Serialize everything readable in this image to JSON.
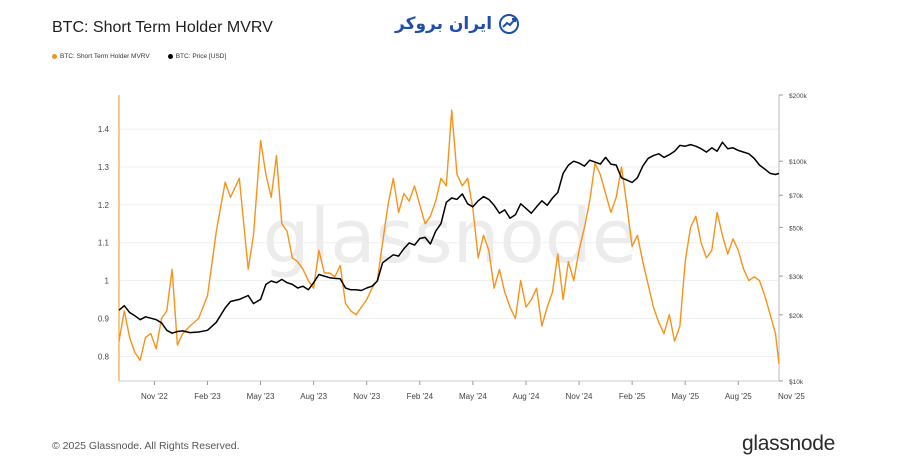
{
  "header": {
    "title": "BTC: Short Term Holder MVRV",
    "brand_text": "ایران بروکر"
  },
  "legend": [
    {
      "label": "BTC: Short Term Holder MVRV",
      "color": "#f7931a"
    },
    {
      "label": "BTC: Price [USD]",
      "color": "#000000"
    }
  ],
  "footer": {
    "copyright": "© 2025 Glassnode. All Rights Reserved.",
    "wordmark": "glassnode",
    "watermark": "glassnode"
  },
  "chart_data": {
    "type": "line",
    "title": "BTC: Short Term Holder MVRV",
    "x_tick_labels": [
      "Nov '22",
      "Feb '23",
      "May '23",
      "Aug '23",
      "Nov '23",
      "Feb '24",
      "May '24",
      "Aug '24",
      "Nov '24",
      "Feb '25",
      "May '25",
      "Aug '25",
      "Nov '25"
    ],
    "x_range": [
      0,
      37.3
    ],
    "y_left": {
      "ticks": [
        0.8,
        0.9,
        1,
        1.1,
        1.2,
        1.3,
        1.4
      ],
      "tick_labels": [
        "0.8",
        "0.9",
        "1",
        "1.1",
        "1.2",
        "1.3",
        "1.4"
      ],
      "range": [
        0.735,
        1.49
      ]
    },
    "y_right": {
      "scale": "log",
      "ticks": [
        10000,
        20000,
        30000,
        50000,
        70000,
        100000,
        200000
      ],
      "tick_labels": [
        "$10k",
        "$20k",
        "$30k",
        "$50k",
        "$70k",
        "$100k",
        "$200k"
      ],
      "range": [
        10000,
        200000
      ]
    },
    "grid": true,
    "legend_position": "top-left",
    "series": [
      {
        "name": "BTC: Short Term Holder MVRV",
        "axis": "left",
        "color": "#f7931a",
        "x": [
          0,
          0.3,
          0.6,
          0.9,
          1.2,
          1.5,
          1.8,
          2.1,
          2.4,
          2.7,
          3.0,
          3.3,
          3.6,
          4.0,
          4.5,
          5.0,
          5.5,
          6.0,
          6.3,
          6.8,
          7.3,
          7.6,
          8.0,
          8.3,
          8.6,
          8.9,
          9.2,
          9.5,
          9.8,
          10.1,
          10.4,
          10.7,
          11.0,
          11.3,
          11.6,
          11.9,
          12.2,
          12.5,
          12.8,
          13.1,
          13.4,
          13.7,
          14.0,
          14.3,
          14.6,
          14.9,
          15.2,
          15.5,
          15.8,
          16.1,
          16.4,
          16.7,
          17.0,
          17.3,
          17.6,
          17.9,
          18.2,
          18.5,
          18.8,
          19.1,
          19.4,
          19.7,
          20.0,
          20.3,
          20.6,
          20.9,
          21.2,
          21.5,
          21.8,
          22.1,
          22.4,
          22.7,
          23.0,
          23.3,
          23.6,
          23.9,
          24.2,
          24.5,
          24.8,
          25.1,
          25.4,
          25.7,
          26.0,
          26.3,
          26.6,
          26.9,
          27.2,
          27.5,
          27.8,
          28.1,
          28.4,
          28.7,
          29.0,
          29.3,
          29.6,
          29.9,
          30.2,
          30.5,
          30.8,
          31.1,
          31.4,
          31.7,
          32.0,
          32.3,
          32.6,
          32.9,
          33.2,
          33.5,
          33.8,
          34.1,
          34.4,
          34.7,
          35.0,
          35.3,
          35.6,
          35.9,
          36.2,
          36.5,
          36.8,
          37.1,
          37.3
        ],
        "y": [
          0.84,
          0.92,
          0.85,
          0.81,
          0.79,
          0.85,
          0.86,
          0.82,
          0.9,
          0.92,
          1.03,
          0.83,
          0.86,
          0.88,
          0.9,
          0.96,
          1.13,
          1.26,
          1.22,
          1.27,
          1.03,
          1.12,
          1.37,
          1.28,
          1.22,
          1.33,
          1.15,
          1.13,
          1.06,
          1.05,
          1.03,
          1.0,
          0.98,
          1.08,
          1.02,
          1.02,
          1.01,
          1.04,
          0.94,
          0.92,
          0.91,
          0.93,
          0.95,
          0.98,
          1.0,
          1.1,
          1.2,
          1.27,
          1.18,
          1.23,
          1.21,
          1.25,
          1.2,
          1.15,
          1.17,
          1.21,
          1.27,
          1.25,
          1.45,
          1.28,
          1.25,
          1.27,
          1.19,
          1.06,
          1.12,
          1.08,
          0.98,
          1.03,
          0.97,
          0.93,
          0.9,
          1.0,
          0.93,
          0.95,
          0.98,
          0.88,
          0.93,
          0.97,
          1.07,
          0.95,
          1.05,
          1.0,
          1.08,
          1.14,
          1.21,
          1.31,
          1.28,
          1.23,
          1.18,
          1.22,
          1.3,
          1.2,
          1.09,
          1.12,
          1.05,
          0.99,
          0.93,
          0.89,
          0.86,
          0.91,
          0.84,
          0.88,
          1.05,
          1.14,
          1.17,
          1.1,
          1.06,
          1.08,
          1.18,
          1.12,
          1.07,
          1.11,
          1.08,
          1.03,
          1.0,
          1.01,
          1.0,
          0.96,
          0.91,
          0.86,
          0.78
        ]
      },
      {
        "name": "BTC: Price [USD]",
        "axis": "right",
        "color": "#000000",
        "x": [
          0,
          0.3,
          0.6,
          0.9,
          1.2,
          1.5,
          1.8,
          2.1,
          2.4,
          2.7,
          3.0,
          3.3,
          3.6,
          4.0,
          4.5,
          5.0,
          5.5,
          6.0,
          6.3,
          6.8,
          7.3,
          7.6,
          8.0,
          8.3,
          8.6,
          8.9,
          9.2,
          9.5,
          9.8,
          10.1,
          10.4,
          10.7,
          11.0,
          11.3,
          11.6,
          11.9,
          12.2,
          12.5,
          12.8,
          13.1,
          13.4,
          13.7,
          14.0,
          14.3,
          14.6,
          14.9,
          15.2,
          15.5,
          15.8,
          16.1,
          16.4,
          16.7,
          17.0,
          17.3,
          17.6,
          17.9,
          18.2,
          18.5,
          18.8,
          19.1,
          19.4,
          19.7,
          20.0,
          20.3,
          20.6,
          20.9,
          21.2,
          21.5,
          21.8,
          22.1,
          22.4,
          22.7,
          23.0,
          23.3,
          23.6,
          23.9,
          24.2,
          24.5,
          24.8,
          25.1,
          25.4,
          25.7,
          26.0,
          26.3,
          26.6,
          26.9,
          27.2,
          27.5,
          27.8,
          28.1,
          28.4,
          28.7,
          29.0,
          29.3,
          29.6,
          29.9,
          30.2,
          30.5,
          30.8,
          31.1,
          31.4,
          31.7,
          32.0,
          32.3,
          32.6,
          32.9,
          33.2,
          33.5,
          33.8,
          34.1,
          34.4,
          34.7,
          35.0,
          35.3,
          35.6,
          35.9,
          36.2,
          36.5,
          36.8,
          37.1,
          37.3
        ],
        "y": [
          21000,
          22000,
          20500,
          19800,
          19000,
          19600,
          19300,
          19000,
          18400,
          17000,
          16500,
          16800,
          16900,
          16600,
          16700,
          17000,
          18500,
          21500,
          23000,
          23500,
          24500,
          22500,
          23500,
          27500,
          28500,
          28000,
          29000,
          28000,
          27500,
          26500,
          27000,
          26000,
          28000,
          30500,
          30000,
          29500,
          29300,
          29200,
          26500,
          26000,
          26000,
          25800,
          26500,
          27000,
          28500,
          34500,
          36000,
          37500,
          37000,
          40000,
          42500,
          41500,
          44500,
          45000,
          42000,
          48000,
          52000,
          65000,
          68000,
          67000,
          71000,
          64000,
          62000,
          66000,
          69000,
          67000,
          63000,
          58000,
          60000,
          55000,
          57000,
          64000,
          61000,
          58000,
          62000,
          66000,
          63000,
          68000,
          72000,
          88000,
          96000,
          100000,
          98000,
          95000,
          101000,
          99000,
          97000,
          104000,
          97000,
          96000,
          84000,
          82000,
          80000,
          84000,
          95000,
          103000,
          106000,
          108000,
          104000,
          107000,
          111000,
          118000,
          117000,
          119000,
          117000,
          114000,
          110000,
          115000,
          111000,
          122000,
          114000,
          115000,
          112000,
          110000,
          108000,
          103000,
          96000,
          92000,
          88000,
          87000,
          88000
        ]
      }
    ]
  }
}
